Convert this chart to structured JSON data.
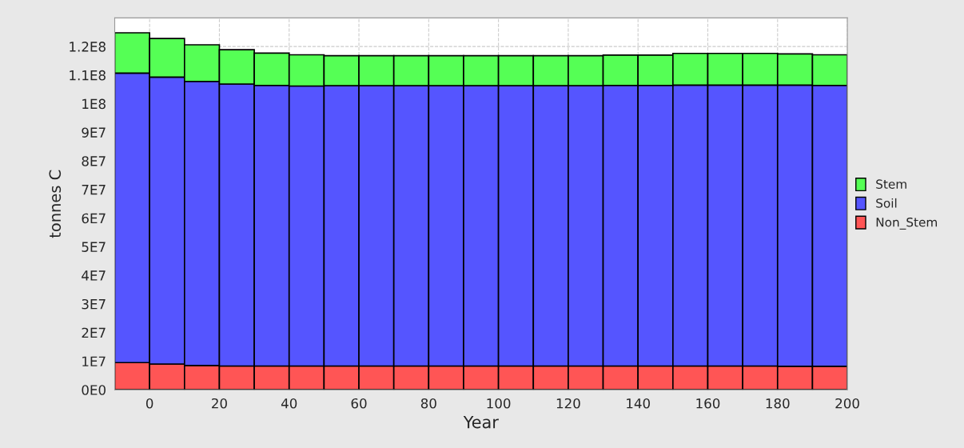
{
  "chart_data": {
    "type": "bar",
    "stacked": true,
    "xlabel": "Year",
    "ylabel": "tonnes C",
    "x": [
      -5,
      5,
      15,
      25,
      35,
      45,
      55,
      65,
      75,
      85,
      95,
      105,
      115,
      125,
      135,
      145,
      155,
      165,
      175,
      185,
      195
    ],
    "series": [
      {
        "name": "Non_Stem",
        "color": "#ff5555",
        "values": [
          9500000,
          9000000,
          8500000,
          8300000,
          8300000,
          8300000,
          8300000,
          8300000,
          8300000,
          8300000,
          8300000,
          8300000,
          8300000,
          8300000,
          8300000,
          8300000,
          8300000,
          8300000,
          8300000,
          8200000,
          8200000
        ]
      },
      {
        "name": "Soil",
        "color": "#5555ff",
        "values": [
          101200000,
          100300000,
          99300000,
          98600000,
          98100000,
          97900000,
          98000000,
          98000000,
          98000000,
          98000000,
          98000000,
          98000000,
          98000000,
          98000000,
          98100000,
          98100000,
          98200000,
          98200000,
          98200000,
          98300000,
          98200000
        ]
      },
      {
        "name": "Stem",
        "color": "#55ff55",
        "values": [
          14100000,
          13500000,
          12800000,
          12000000,
          11300000,
          10900000,
          10500000,
          10500000,
          10500000,
          10500000,
          10500000,
          10500000,
          10500000,
          10500000,
          10600000,
          10600000,
          11100000,
          11100000,
          11100000,
          10900000,
          10700000
        ]
      }
    ],
    "xlim": [
      -10,
      200
    ],
    "xticks": [
      0,
      20,
      40,
      60,
      80,
      100,
      120,
      140,
      160,
      180,
      200
    ],
    "ylim": [
      0,
      130000000
    ],
    "yticks": [
      {
        "value": 0,
        "label": "0E0"
      },
      {
        "value": 10000000,
        "label": "1E7"
      },
      {
        "value": 20000000,
        "label": "2E7"
      },
      {
        "value": 30000000,
        "label": "3E7"
      },
      {
        "value": 40000000,
        "label": "4E7"
      },
      {
        "value": 50000000,
        "label": "5E7"
      },
      {
        "value": 60000000,
        "label": "6E7"
      },
      {
        "value": 70000000,
        "label": "7E7"
      },
      {
        "value": 80000000,
        "label": "8E7"
      },
      {
        "value": 90000000,
        "label": "9E7"
      },
      {
        "value": 100000000,
        "label": "1E8"
      },
      {
        "value": 110000000,
        "label": "1.1E8"
      },
      {
        "value": 120000000,
        "label": "1.2E8"
      }
    ],
    "grid": true,
    "legend": "right"
  }
}
